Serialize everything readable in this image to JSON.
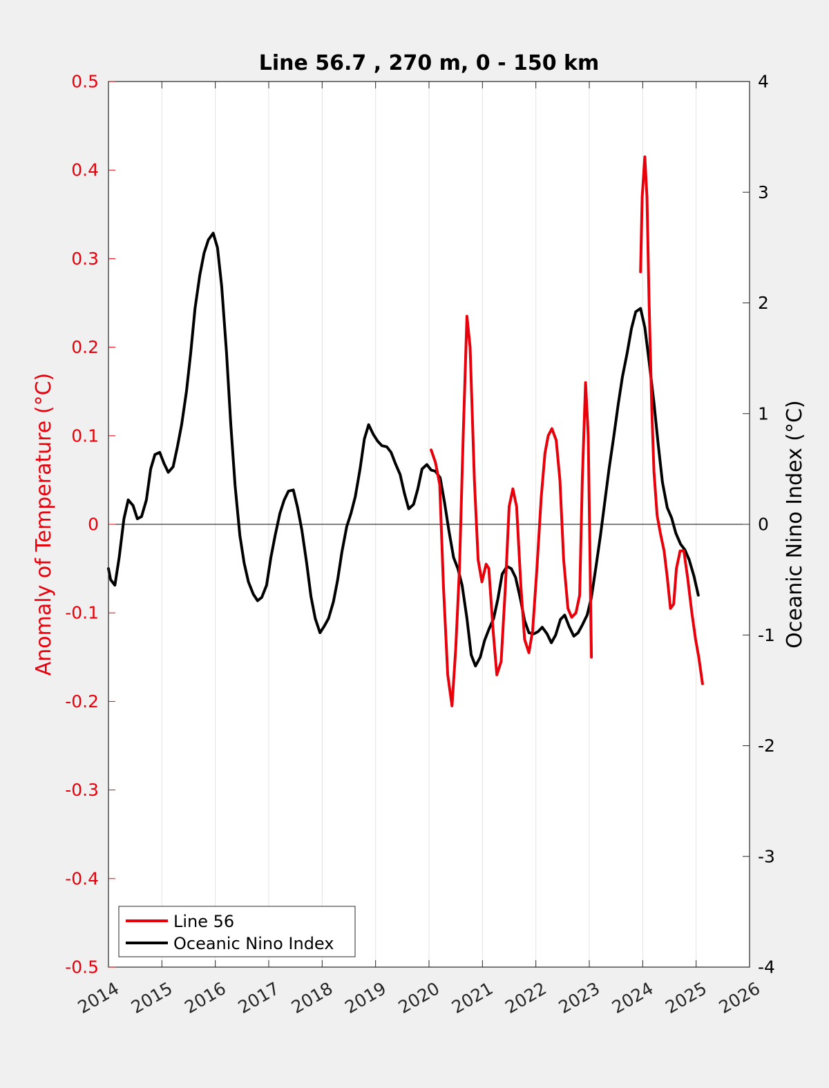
{
  "chart_data": {
    "type": "line",
    "title": "Line 56.7 , 270 m, 0 - 150 km",
    "xlabel": "",
    "ylabel_left": "Anomaly of Temperature (°C)",
    "ylabel_right": "Oceanic Nino Index (°C)",
    "xlim": [
      2014,
      2026
    ],
    "ylim_left": [
      -0.5,
      0.5
    ],
    "ylim_right": [
      -4,
      4
    ],
    "x_ticks": [
      2014,
      2015,
      2016,
      2017,
      2018,
      2019,
      2020,
      2021,
      2022,
      2023,
      2024,
      2025,
      2026
    ],
    "y_ticks_left": [
      "-0.5",
      "-0.4",
      "-0.3",
      "-0.2",
      "-0.1",
      "0",
      "0.1",
      "0.2",
      "0.3",
      "0.4",
      "0.5"
    ],
    "y_ticks_right": [
      "-4",
      "-3",
      "-2",
      "-1",
      "0",
      "1",
      "2",
      "3",
      "4"
    ],
    "grid": "vertical",
    "legend_position": "bottom-left",
    "left_axis_color": "#e8000b",
    "right_axis_color": "#000000",
    "series": [
      {
        "name": "Line 56",
        "axis": "left",
        "color": "#e8000b",
        "segments": [
          [
            [
              2020.04,
              0.084
            ],
            [
              2020.12,
              0.07
            ],
            [
              2020.2,
              0.045
            ],
            [
              2020.27,
              -0.07
            ],
            [
              2020.35,
              -0.17
            ],
            [
              2020.43,
              -0.205
            ],
            [
              2020.5,
              -0.14
            ],
            [
              2020.57,
              -0.05
            ],
            [
              2020.64,
              0.1
            ],
            [
              2020.71,
              0.235
            ],
            [
              2020.77,
              0.2
            ],
            [
              2020.85,
              0.05
            ],
            [
              2020.92,
              -0.04
            ],
            [
              2020.99,
              -0.065
            ],
            [
              2021.07,
              -0.045
            ],
            [
              2021.12,
              -0.05
            ],
            [
              2021.2,
              -0.12
            ],
            [
              2021.27,
              -0.17
            ],
            [
              2021.35,
              -0.155
            ],
            [
              2021.43,
              -0.07
            ],
            [
              2021.5,
              0.02
            ],
            [
              2021.57,
              0.04
            ],
            [
              2021.64,
              0.02
            ],
            [
              2021.72,
              -0.07
            ],
            [
              2021.79,
              -0.13
            ],
            [
              2021.87,
              -0.145
            ],
            [
              2021.94,
              -0.12
            ],
            [
              2022.02,
              -0.05
            ],
            [
              2022.1,
              0.03
            ],
            [
              2022.17,
              0.08
            ],
            [
              2022.23,
              0.1
            ],
            [
              2022.3,
              0.108
            ],
            [
              2022.38,
              0.095
            ],
            [
              2022.45,
              0.05
            ],
            [
              2022.52,
              -0.04
            ],
            [
              2022.6,
              -0.095
            ],
            [
              2022.67,
              -0.105
            ],
            [
              2022.75,
              -0.1
            ],
            [
              2022.82,
              -0.08
            ],
            [
              2022.87,
              0.05
            ],
            [
              2022.93,
              0.16
            ],
            [
              2022.98,
              0.1
            ],
            [
              2023.04,
              -0.15
            ]
          ],
          [
            [
              2023.96,
              0.285
            ],
            [
              2023.99,
              0.37
            ],
            [
              2024.04,
              0.415
            ],
            [
              2024.08,
              0.37
            ],
            [
              2024.12,
              0.25
            ],
            [
              2024.17,
              0.13
            ],
            [
              2024.21,
              0.06
            ],
            [
              2024.27,
              0.01
            ],
            [
              2024.33,
              -0.01
            ],
            [
              2024.4,
              -0.03
            ],
            [
              2024.46,
              -0.06
            ],
            [
              2024.52,
              -0.095
            ],
            [
              2024.58,
              -0.09
            ],
            [
              2024.63,
              -0.05
            ],
            [
              2024.7,
              -0.03
            ],
            [
              2024.77,
              -0.03
            ],
            [
              2024.84,
              -0.06
            ],
            [
              2024.92,
              -0.1
            ],
            [
              2024.99,
              -0.13
            ],
            [
              2025.05,
              -0.15
            ],
            [
              2025.12,
              -0.18
            ]
          ]
        ]
      },
      {
        "name": "Oceanic Nino Index",
        "axis": "right",
        "color": "#000000",
        "segments": [
          [
            [
              2014.0,
              -0.4
            ],
            [
              2014.04,
              -0.5
            ],
            [
              2014.12,
              -0.55
            ],
            [
              2014.2,
              -0.3
            ],
            [
              2014.29,
              0.05
            ],
            [
              2014.37,
              0.22
            ],
            [
              2014.46,
              0.17
            ],
            [
              2014.54,
              0.05
            ],
            [
              2014.62,
              0.07
            ],
            [
              2014.71,
              0.22
            ],
            [
              2014.79,
              0.5
            ],
            [
              2014.87,
              0.63
            ],
            [
              2014.96,
              0.65
            ],
            [
              2015.04,
              0.55
            ],
            [
              2015.12,
              0.47
            ],
            [
              2015.21,
              0.52
            ],
            [
              2015.29,
              0.7
            ],
            [
              2015.37,
              0.9
            ],
            [
              2015.46,
              1.2
            ],
            [
              2015.54,
              1.55
            ],
            [
              2015.62,
              1.95
            ],
            [
              2015.71,
              2.25
            ],
            [
              2015.79,
              2.45
            ],
            [
              2015.87,
              2.57
            ],
            [
              2015.96,
              2.63
            ],
            [
              2016.04,
              2.5
            ],
            [
              2016.12,
              2.15
            ],
            [
              2016.21,
              1.55
            ],
            [
              2016.29,
              0.9
            ],
            [
              2016.37,
              0.35
            ],
            [
              2016.46,
              -0.1
            ],
            [
              2016.54,
              -0.35
            ],
            [
              2016.62,
              -0.52
            ],
            [
              2016.71,
              -0.63
            ],
            [
              2016.79,
              -0.69
            ],
            [
              2016.87,
              -0.66
            ],
            [
              2016.96,
              -0.55
            ],
            [
              2017.04,
              -0.3
            ],
            [
              2017.12,
              -0.1
            ],
            [
              2017.21,
              0.1
            ],
            [
              2017.29,
              0.22
            ],
            [
              2017.37,
              0.3
            ],
            [
              2017.46,
              0.31
            ],
            [
              2017.54,
              0.15
            ],
            [
              2017.62,
              -0.05
            ],
            [
              2017.71,
              -0.35
            ],
            [
              2017.79,
              -0.65
            ],
            [
              2017.87,
              -0.85
            ],
            [
              2017.96,
              -0.98
            ],
            [
              2018.04,
              -0.92
            ],
            [
              2018.12,
              -0.85
            ],
            [
              2018.21,
              -0.7
            ],
            [
              2018.29,
              -0.5
            ],
            [
              2018.37,
              -0.25
            ],
            [
              2018.46,
              -0.02
            ],
            [
              2018.54,
              0.1
            ],
            [
              2018.62,
              0.25
            ],
            [
              2018.71,
              0.5
            ],
            [
              2018.79,
              0.77
            ],
            [
              2018.87,
              0.9
            ],
            [
              2018.96,
              0.81
            ],
            [
              2019.04,
              0.75
            ],
            [
              2019.12,
              0.71
            ],
            [
              2019.21,
              0.7
            ],
            [
              2019.29,
              0.65
            ],
            [
              2019.37,
              0.55
            ],
            [
              2019.46,
              0.45
            ],
            [
              2019.54,
              0.28
            ],
            [
              2019.62,
              0.14
            ],
            [
              2019.71,
              0.18
            ],
            [
              2019.79,
              0.32
            ],
            [
              2019.87,
              0.5
            ],
            [
              2019.96,
              0.54
            ],
            [
              2020.04,
              0.49
            ],
            [
              2020.12,
              0.48
            ],
            [
              2020.21,
              0.42
            ],
            [
              2020.29,
              0.2
            ],
            [
              2020.37,
              -0.05
            ],
            [
              2020.46,
              -0.3
            ],
            [
              2020.54,
              -0.4
            ],
            [
              2020.62,
              -0.55
            ],
            [
              2020.71,
              -0.85
            ],
            [
              2020.79,
              -1.18
            ],
            [
              2020.87,
              -1.28
            ],
            [
              2020.96,
              -1.2
            ],
            [
              2021.04,
              -1.05
            ],
            [
              2021.12,
              -0.95
            ],
            [
              2021.21,
              -0.85
            ],
            [
              2021.29,
              -0.67
            ],
            [
              2021.37,
              -0.45
            ],
            [
              2021.46,
              -0.38
            ],
            [
              2021.54,
              -0.4
            ],
            [
              2021.62,
              -0.48
            ],
            [
              2021.71,
              -0.67
            ],
            [
              2021.79,
              -0.87
            ],
            [
              2021.87,
              -0.98
            ],
            [
              2021.96,
              -0.99
            ],
            [
              2022.04,
              -0.97
            ],
            [
              2022.12,
              -0.93
            ],
            [
              2022.21,
              -0.99
            ],
            [
              2022.29,
              -1.07
            ],
            [
              2022.37,
              -1.0
            ],
            [
              2022.46,
              -0.86
            ],
            [
              2022.54,
              -0.82
            ],
            [
              2022.62,
              -0.92
            ],
            [
              2022.71,
              -1.01
            ],
            [
              2022.79,
              -0.98
            ],
            [
              2022.87,
              -0.91
            ],
            [
              2022.96,
              -0.82
            ],
            [
              2023.04,
              -0.66
            ],
            [
              2023.12,
              -0.4
            ],
            [
              2023.21,
              -0.1
            ],
            [
              2023.29,
              0.2
            ],
            [
              2023.37,
              0.5
            ],
            [
              2023.46,
              0.8
            ],
            [
              2023.54,
              1.08
            ],
            [
              2023.62,
              1.33
            ],
            [
              2023.71,
              1.55
            ],
            [
              2023.79,
              1.77
            ],
            [
              2023.87,
              1.92
            ],
            [
              2023.96,
              1.95
            ],
            [
              2024.04,
              1.78
            ],
            [
              2024.12,
              1.47
            ],
            [
              2024.21,
              1.1
            ],
            [
              2024.29,
              0.72
            ],
            [
              2024.37,
              0.38
            ],
            [
              2024.46,
              0.15
            ],
            [
              2024.54,
              0.06
            ],
            [
              2024.62,
              -0.08
            ],
            [
              2024.71,
              -0.18
            ],
            [
              2024.79,
              -0.23
            ],
            [
              2024.87,
              -0.32
            ],
            [
              2024.96,
              -0.47
            ],
            [
              2025.04,
              -0.64
            ]
          ]
        ]
      }
    ]
  }
}
